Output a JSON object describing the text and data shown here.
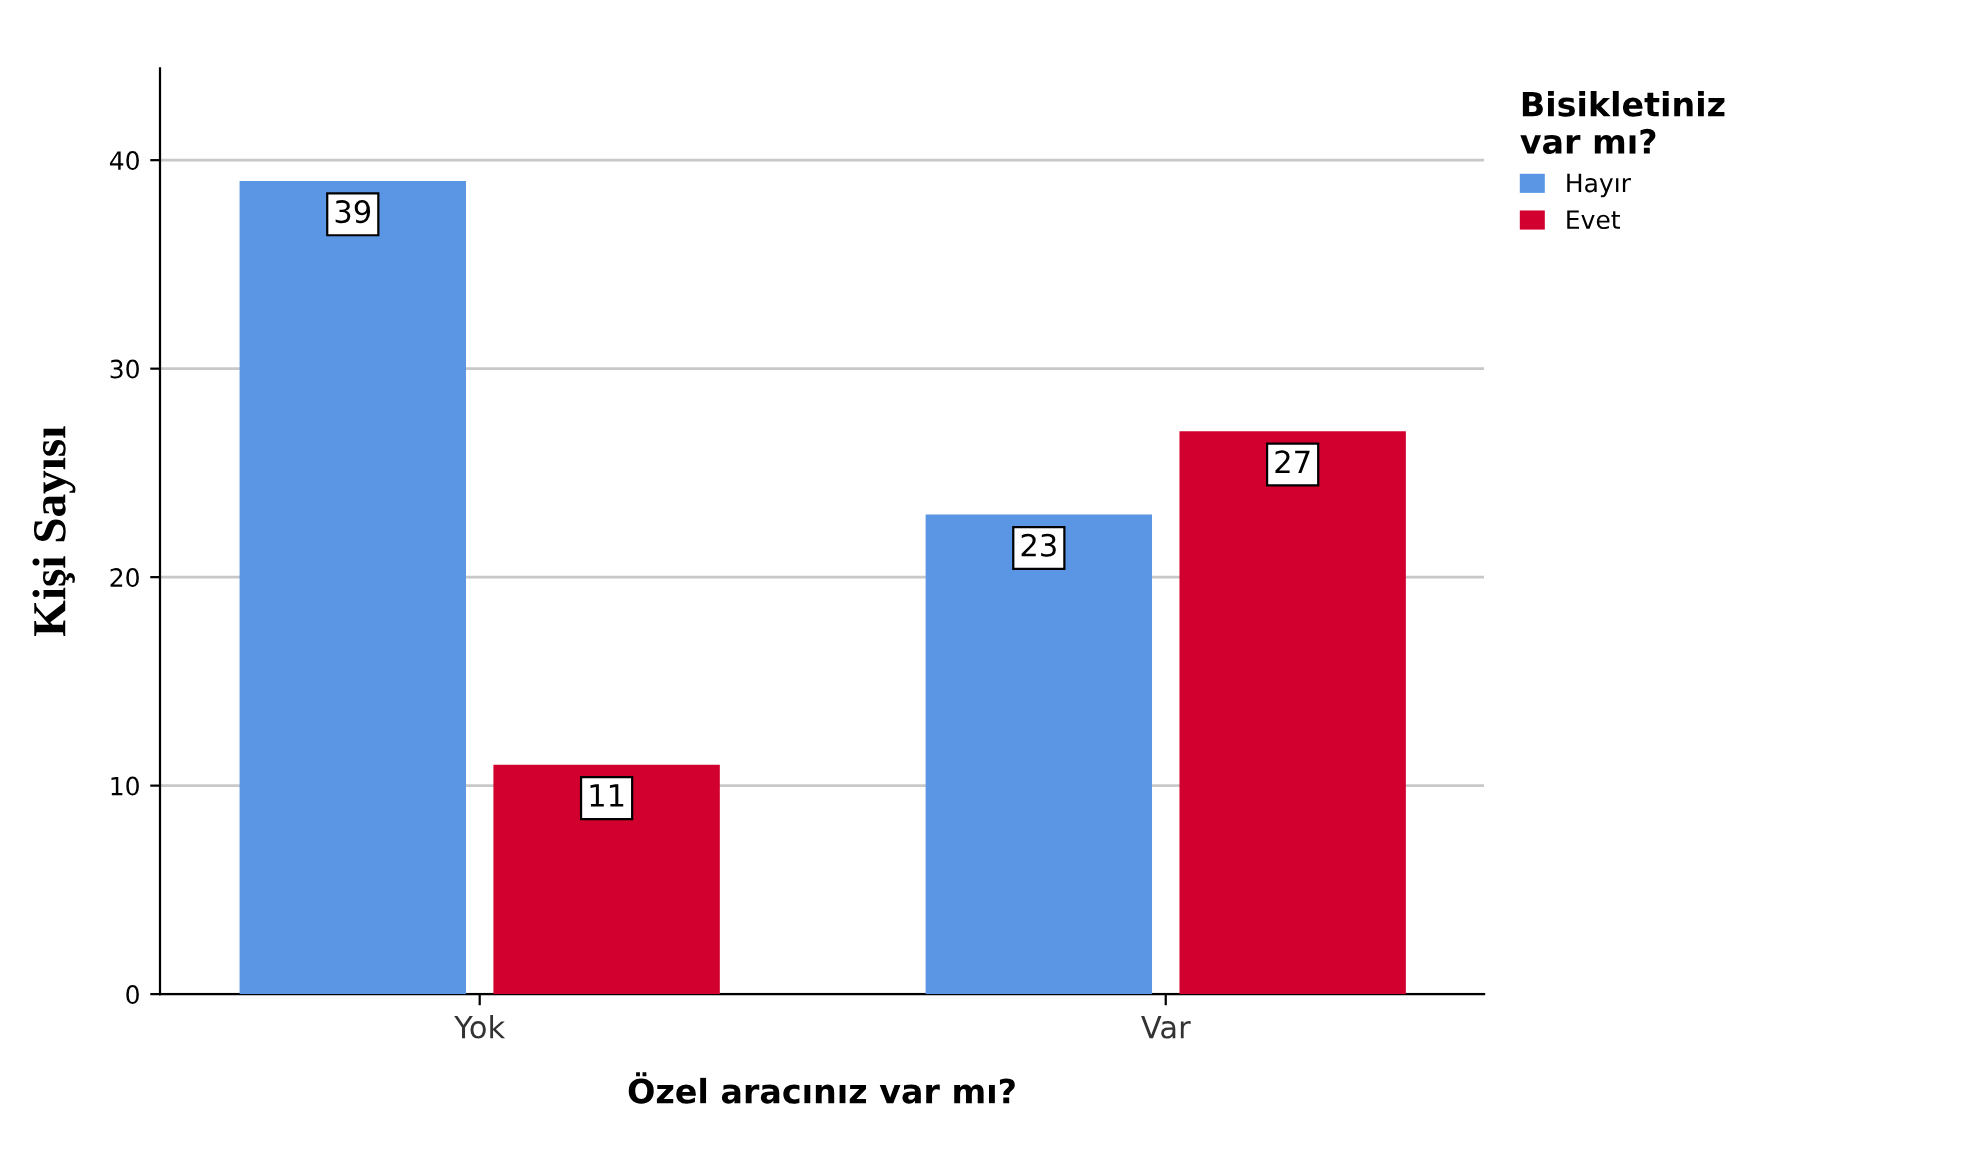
{
  "chart_data": {
    "type": "bar",
    "xlabel": "Özel aracınız var mı?",
    "ylabel": "Kişi Sayısı",
    "legend_title": "Bisikletiniz\nvar mı?",
    "categories": [
      "Yok",
      "Var"
    ],
    "series": [
      {
        "name": "Hayır",
        "color": "#5a96e3",
        "values": [
          39,
          23
        ]
      },
      {
        "name": "Evet",
        "color": "#d2002e",
        "values": [
          11,
          27
        ]
      }
    ],
    "ylim": [
      0,
      44.4
    ],
    "yticks": [
      0,
      10,
      20,
      30,
      40
    ],
    "grid": "y",
    "legend": "right",
    "data_labels": true
  }
}
